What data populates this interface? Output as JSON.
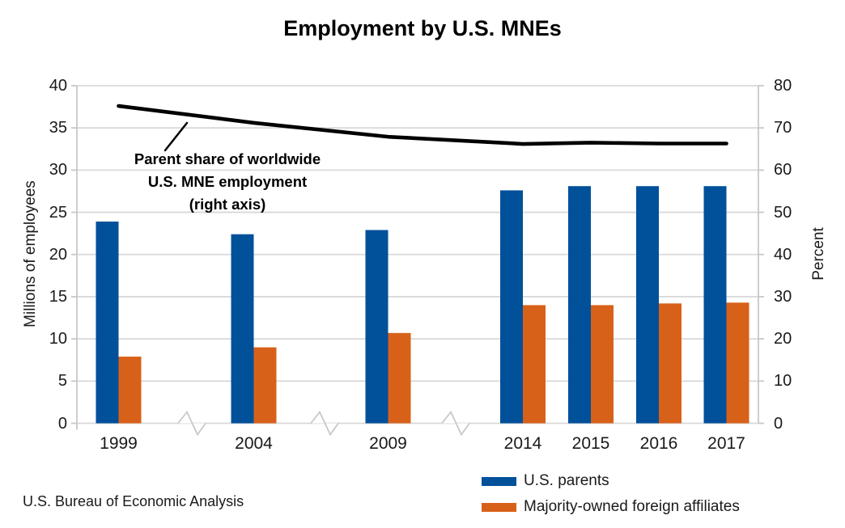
{
  "source_note": "U.S. Bureau of Economic Analysis",
  "colors": {
    "parents_blue": "#00509A",
    "affiliates_orange": "#D8611A",
    "share_line": "#000000",
    "gridline": "#D9D9D9",
    "axis": "#C8C8C8",
    "text": "#1a1a1a"
  },
  "chart_data": {
    "type": "bar+line combo",
    "title": "Employment by U.S. MNEs",
    "categories": [
      "1999",
      "2004",
      "2009",
      "2014",
      "2015",
      "2016",
      "2017"
    ],
    "series": [
      {
        "name": "U.S. parents",
        "type": "bar",
        "axis": "left",
        "color": "#00509A",
        "values": [
          23.9,
          22.4,
          22.9,
          27.6,
          28.1,
          28.1,
          28.1
        ]
      },
      {
        "name": "Majority-owned foreign affiliates",
        "type": "bar",
        "axis": "left",
        "color": "#D8611A",
        "values": [
          7.9,
          9.0,
          10.7,
          14.0,
          14.0,
          14.2,
          14.3
        ]
      },
      {
        "name": "Parent share of worldwide U.S. MNE employment",
        "type": "line",
        "axis": "right",
        "color": "#000000",
        "values": [
          75.2,
          71.2,
          67.9,
          66.2,
          66.5,
          66.3,
          66.3
        ]
      }
    ],
    "left_axis": {
      "title": "Millions of employees",
      "min": 0,
      "max": 40,
      "ticks": [
        0,
        5,
        10,
        15,
        20,
        25,
        30,
        35,
        40
      ]
    },
    "right_axis": {
      "title": "Percent",
      "min": 0,
      "max": 80,
      "ticks": [
        0,
        10,
        20,
        30,
        40,
        50,
        60,
        70,
        80
      ]
    },
    "grid": true,
    "axis_breaks_between": [
      [
        "1999",
        "2004"
      ],
      [
        "2004",
        "2009"
      ],
      [
        "2009",
        "2014"
      ]
    ],
    "annotation": {
      "lines": [
        "Parent share of worldwide",
        "U.S. MNE employment",
        "(right axis)"
      ],
      "points_to": "share line"
    },
    "legend": {
      "position": "bottom-right",
      "items": [
        {
          "label": "U.S. parents",
          "color": "#00509A"
        },
        {
          "label": "Majority-owned foreign affiliates",
          "color": "#D8611A"
        }
      ]
    }
  }
}
